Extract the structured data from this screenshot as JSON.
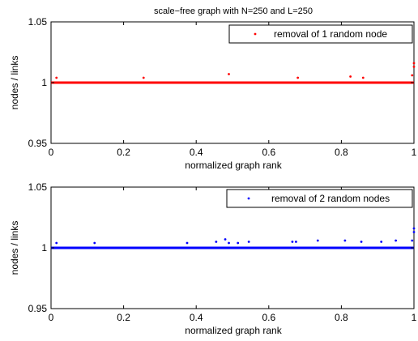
{
  "chart_data": [
    {
      "type": "scatter",
      "title": "scale−free graph with N=250 and L=250",
      "xlabel": "normalized graph rank",
      "ylabel": "nodes / links",
      "xlim": [
        0,
        1
      ],
      "ylim": [
        0.95,
        1.05
      ],
      "xticks": [
        "0",
        "0.2",
        "0.4",
        "0.6",
        "0.8",
        "1"
      ],
      "yticks": [
        "0.95",
        "1",
        "1.05"
      ],
      "legend_placement": "top-right",
      "series": [
        {
          "name": "removal of 1 random node",
          "color": "#ff0000",
          "x": [
            0.015,
            0.255,
            0.49,
            0.68,
            0.825,
            0.86,
            0.995,
            1.0,
            1.0
          ],
          "y": [
            1.004,
            1.004,
            1.007,
            1.004,
            1.005,
            1.004,
            1.006,
            1.013,
            1.016
          ]
        }
      ],
      "baseline": {
        "y": 1.0,
        "color": "#ff0000"
      }
    },
    {
      "type": "scatter",
      "title": "",
      "xlabel": "normalized graph rank",
      "ylabel": "nodes / links",
      "xlim": [
        0,
        1
      ],
      "ylim": [
        0.95,
        1.05
      ],
      "xticks": [
        "0",
        "0.2",
        "0.4",
        "0.6",
        "0.8",
        "1"
      ],
      "yticks": [
        "0.95",
        "1",
        "1.05"
      ],
      "legend_placement": "top-right",
      "series": [
        {
          "name": "removal of 2 random nodes",
          "color": "#0000ff",
          "x": [
            0.015,
            0.12,
            0.375,
            0.455,
            0.48,
            0.49,
            0.515,
            0.545,
            0.665,
            0.675,
            0.735,
            0.81,
            0.855,
            0.91,
            0.95,
            0.995,
            1.0,
            1.0
          ],
          "y": [
            1.004,
            1.004,
            1.004,
            1.005,
            1.007,
            1.004,
            1.004,
            1.005,
            1.005,
            1.005,
            1.006,
            1.006,
            1.005,
            1.005,
            1.006,
            1.006,
            1.013,
            1.016
          ]
        }
      ],
      "baseline": {
        "y": 1.0,
        "color": "#0000ff"
      }
    }
  ]
}
